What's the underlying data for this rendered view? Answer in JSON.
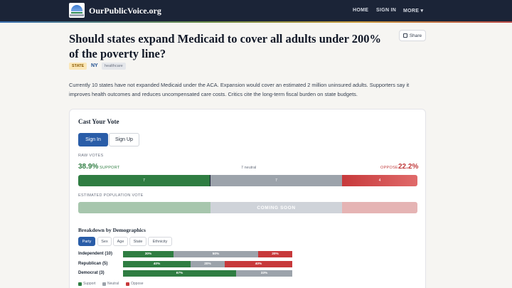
{
  "nav": {
    "brand": "OurPublicVoice.org",
    "links": [
      "HOME",
      "SIGN IN",
      "MORE ▾"
    ]
  },
  "question": {
    "title": "Should states expand Medicaid to cover all adults under 200% of the poverty line?",
    "share_label": "Share",
    "tags": {
      "level": "STATE",
      "state": "NY",
      "topic": "healthcare"
    },
    "description": "Currently 10 states have not expanded Medicaid under the ACA. Expansion would cover an estimated 2 million uninsured adults. Supporters say it improves health outcomes and reduces uncompensated care costs. Critics cite the long-term fiscal burden on state budgets."
  },
  "vote": {
    "card_title": "Cast Your Vote",
    "signin_label": "Sign In",
    "signup_label": "Sign Up",
    "raw_label": "RAW VOTES",
    "support_pct": "38.9%",
    "support_word": "SUPPORT",
    "neutral_text": "7 neutral",
    "oppose_word": "OPPOSE",
    "oppose_pct": "22.2%",
    "raw_counts": {
      "support": "7",
      "neutral": "7",
      "oppose": "4"
    },
    "estimated_label": "ESTIMATED POPULATION VOTE",
    "coming_soon": "COMING SOON"
  },
  "breakdown": {
    "title": "Breakdown by Demographics",
    "tabs": [
      "Party",
      "Sex",
      "Age",
      "State",
      "Ethnicity"
    ],
    "active_tab": "Party",
    "rows": [
      {
        "label": "Independent (10)",
        "support": 30,
        "neutral": 50,
        "oppose": 20,
        "support_text": "30%",
        "neutral_text": "50%",
        "oppose_text": "20%"
      },
      {
        "label": "Republican (5)",
        "support": 40,
        "neutral": 20,
        "oppose": 40,
        "support_text": "40%",
        "neutral_text": "20%",
        "oppose_text": "40%"
      },
      {
        "label": "Democrat (3)",
        "support": 67,
        "neutral": 33,
        "oppose": 0,
        "support_text": "67%",
        "neutral_text": "33%",
        "oppose_text": ""
      }
    ],
    "legend": [
      "Support",
      "Neutral",
      "Oppose"
    ]
  },
  "colors": {
    "support": "#2f7d42",
    "neutral": "#9ca3ab",
    "oppose": "#c7393b",
    "primary": "#2a5da8",
    "nav": "#1b2437"
  },
  "icons": {
    "logo": "site-logo",
    "share": "share-icon"
  }
}
